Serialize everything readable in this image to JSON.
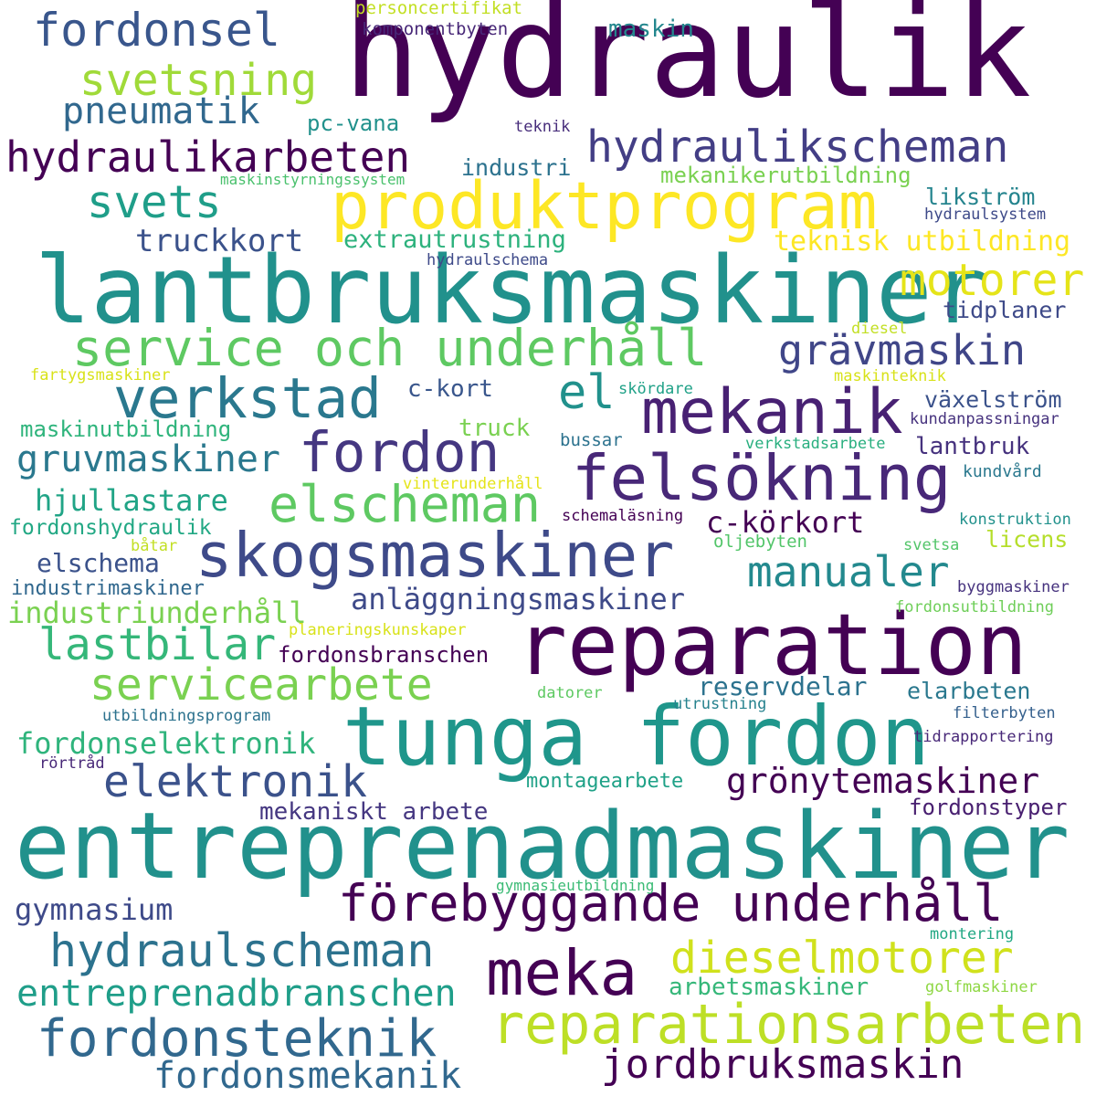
{
  "words": [
    {
      "text": "hydraulik",
      "color": "#440154"
    },
    {
      "text": "lantbruksmaskiner",
      "color": "#21918c"
    },
    {
      "text": "entreprenadmaskiner",
      "color": "#21918c"
    },
    {
      "text": "reparation",
      "color": "#440154"
    },
    {
      "text": "tunga fordon",
      "color": "#1f968b"
    },
    {
      "text": "produktprogram",
      "color": "#fde725"
    },
    {
      "text": "service och underhåll",
      "color": "#5ec962"
    },
    {
      "text": "mekanik",
      "color": "#482173"
    },
    {
      "text": "felsökning",
      "color": "#482878"
    },
    {
      "text": "skogsmaskiner",
      "color": "#3e4a89"
    },
    {
      "text": "förebyggande underhåll",
      "color": "#440154"
    },
    {
      "text": "fordon",
      "color": "#453781"
    },
    {
      "text": "verkstad",
      "color": "#2a788e"
    },
    {
      "text": "elscheman",
      "color": "#5ec962"
    },
    {
      "text": "meka",
      "color": "#440154"
    },
    {
      "text": "reparationsarbeten",
      "color": "#bddf26"
    },
    {
      "text": "fordonsteknik",
      "color": "#31688e"
    },
    {
      "text": "jordbruksmaskin",
      "color": "#440154"
    },
    {
      "text": "hydraulscheman",
      "color": "#2c728e"
    },
    {
      "text": "dieselmotorer",
      "color": "#d0e11c"
    },
    {
      "text": "servicearbete",
      "color": "#7ad151"
    },
    {
      "text": "elektronik",
      "color": "#3b528b"
    },
    {
      "text": "hydraulikscheman",
      "color": "#433e85"
    },
    {
      "text": "hydraulikarbeten",
      "color": "#440154"
    },
    {
      "text": "fordonsel",
      "color": "#39568c"
    },
    {
      "text": "svetsning",
      "color": "#a0da39"
    },
    {
      "text": "pneumatik",
      "color": "#31688e"
    },
    {
      "text": "svets",
      "color": "#1f9e89"
    },
    {
      "text": "motorer",
      "color": "#e5e419"
    },
    {
      "text": "grävmaskin",
      "color": "#404688"
    },
    {
      "text": "manualer",
      "color": "#23898e"
    },
    {
      "text": "lastbilar",
      "color": "#35b779"
    },
    {
      "text": "gruvmaskiner",
      "color": "#2a788e"
    },
    {
      "text": "entreprenadbranschen",
      "color": "#1f9e89"
    },
    {
      "text": "fordonsmekanik",
      "color": "#31688e"
    },
    {
      "text": "grönytemaskiner",
      "color": "#440154"
    },
    {
      "text": "el",
      "color": "#21918c"
    },
    {
      "text": "truckkort",
      "color": "#3b528b"
    },
    {
      "text": "anläggningsmaskiner",
      "color": "#3e4a89"
    },
    {
      "text": "hjullastare",
      "color": "#20a486"
    },
    {
      "text": "fordonselektronik",
      "color": "#2fb47c"
    },
    {
      "text": "industriunderhåll",
      "color": "#7ad151"
    },
    {
      "text": "gymnasium",
      "color": "#3e4a89"
    },
    {
      "text": "extrautrustning",
      "color": "#2db27d"
    },
    {
      "text": "teknisk utbildning",
      "color": "#fde725"
    },
    {
      "text": "c-körkort",
      "color": "#440154"
    },
    {
      "text": "reservdelar",
      "color": "#2c728e"
    },
    {
      "text": "fordonsbranschen",
      "color": "#440154"
    },
    {
      "text": "arbetsmaskiner",
      "color": "#35b779"
    },
    {
      "text": "montagearbete",
      "color": "#1fa187"
    },
    {
      "text": "mekaniskt arbete",
      "color": "#453781"
    },
    {
      "text": "fordonstyper",
      "color": "#481f70"
    },
    {
      "text": "elschema",
      "color": "#3b528b"
    },
    {
      "text": "växelström",
      "color": "#3b528b"
    },
    {
      "text": "lantbruk",
      "color": "#46327e"
    },
    {
      "text": "industri",
      "color": "#2c728e"
    },
    {
      "text": "mekanikerutbildning",
      "color": "#7ad151"
    },
    {
      "text": "likström",
      "color": "#25848e"
    },
    {
      "text": "tidplaner",
      "color": "#3e4a89"
    },
    {
      "text": "maskin",
      "color": "#24878e"
    },
    {
      "text": "pc-vana",
      "color": "#21918c"
    },
    {
      "text": "c-kort",
      "color": "#39568c"
    },
    {
      "text": "truck",
      "color": "#7ad151"
    },
    {
      "text": "maskinutbildning",
      "color": "#2fb47c"
    },
    {
      "text": "fordonshydraulik",
      "color": "#22a884"
    },
    {
      "text": "industrimaskiner",
      "color": "#31688e"
    },
    {
      "text": "elarbeten",
      "color": "#2a788e"
    },
    {
      "text": "licens",
      "color": "#b5de2b"
    },
    {
      "text": "personcertifikat",
      "color": "#c2df23"
    },
    {
      "text": "komponentbyten",
      "color": "#482878"
    },
    {
      "text": "teknik",
      "color": "#472d7b"
    },
    {
      "text": "maskinstyrningssystem",
      "color": "#4ac16d"
    },
    {
      "text": "hydraulsystem",
      "color": "#3e4a89"
    },
    {
      "text": "hydraulschema",
      "color": "#3e4a89"
    },
    {
      "text": "diesel",
      "color": "#c2df23"
    },
    {
      "text": "fartygsmaskiner",
      "color": "#d8e219"
    },
    {
      "text": "maskinteknik",
      "color": "#d8e219"
    },
    {
      "text": "skördare",
      "color": "#1fa187"
    },
    {
      "text": "kundanpassningar",
      "color": "#46327e"
    },
    {
      "text": "bussar",
      "color": "#2c728e"
    },
    {
      "text": "verkstadsarbete",
      "color": "#29af7f"
    },
    {
      "text": "kundvård",
      "color": "#2a788e"
    },
    {
      "text": "vinterunderhåll",
      "color": "#e5e419"
    },
    {
      "text": "schemaläsning",
      "color": "#440154"
    },
    {
      "text": "konstruktion",
      "color": "#21918c"
    },
    {
      "text": "båtar",
      "color": "#c2df23"
    },
    {
      "text": "oljebyten",
      "color": "#52c569"
    },
    {
      "text": "svetsa",
      "color": "#52c569"
    },
    {
      "text": "byggmaskiner",
      "color": "#46327e"
    },
    {
      "text": "fordonsutbildning",
      "color": "#6ece58"
    },
    {
      "text": "planeringskunskaper",
      "color": "#d8e219"
    },
    {
      "text": "datorer",
      "color": "#5ec962"
    },
    {
      "text": "utrustning",
      "color": "#26828e"
    },
    {
      "text": "utbildningsprogram",
      "color": "#2c728e"
    },
    {
      "text": "filterbyten",
      "color": "#35608d"
    },
    {
      "text": "tidrapportering",
      "color": "#482878"
    },
    {
      "text": "rörtråd",
      "color": "#482878"
    },
    {
      "text": "gymnasieutbildning",
      "color": "#3bbb75"
    },
    {
      "text": "montering",
      "color": "#22a884"
    },
    {
      "text": "golfmaskiner",
      "color": "#8fd744"
    }
  ]
}
